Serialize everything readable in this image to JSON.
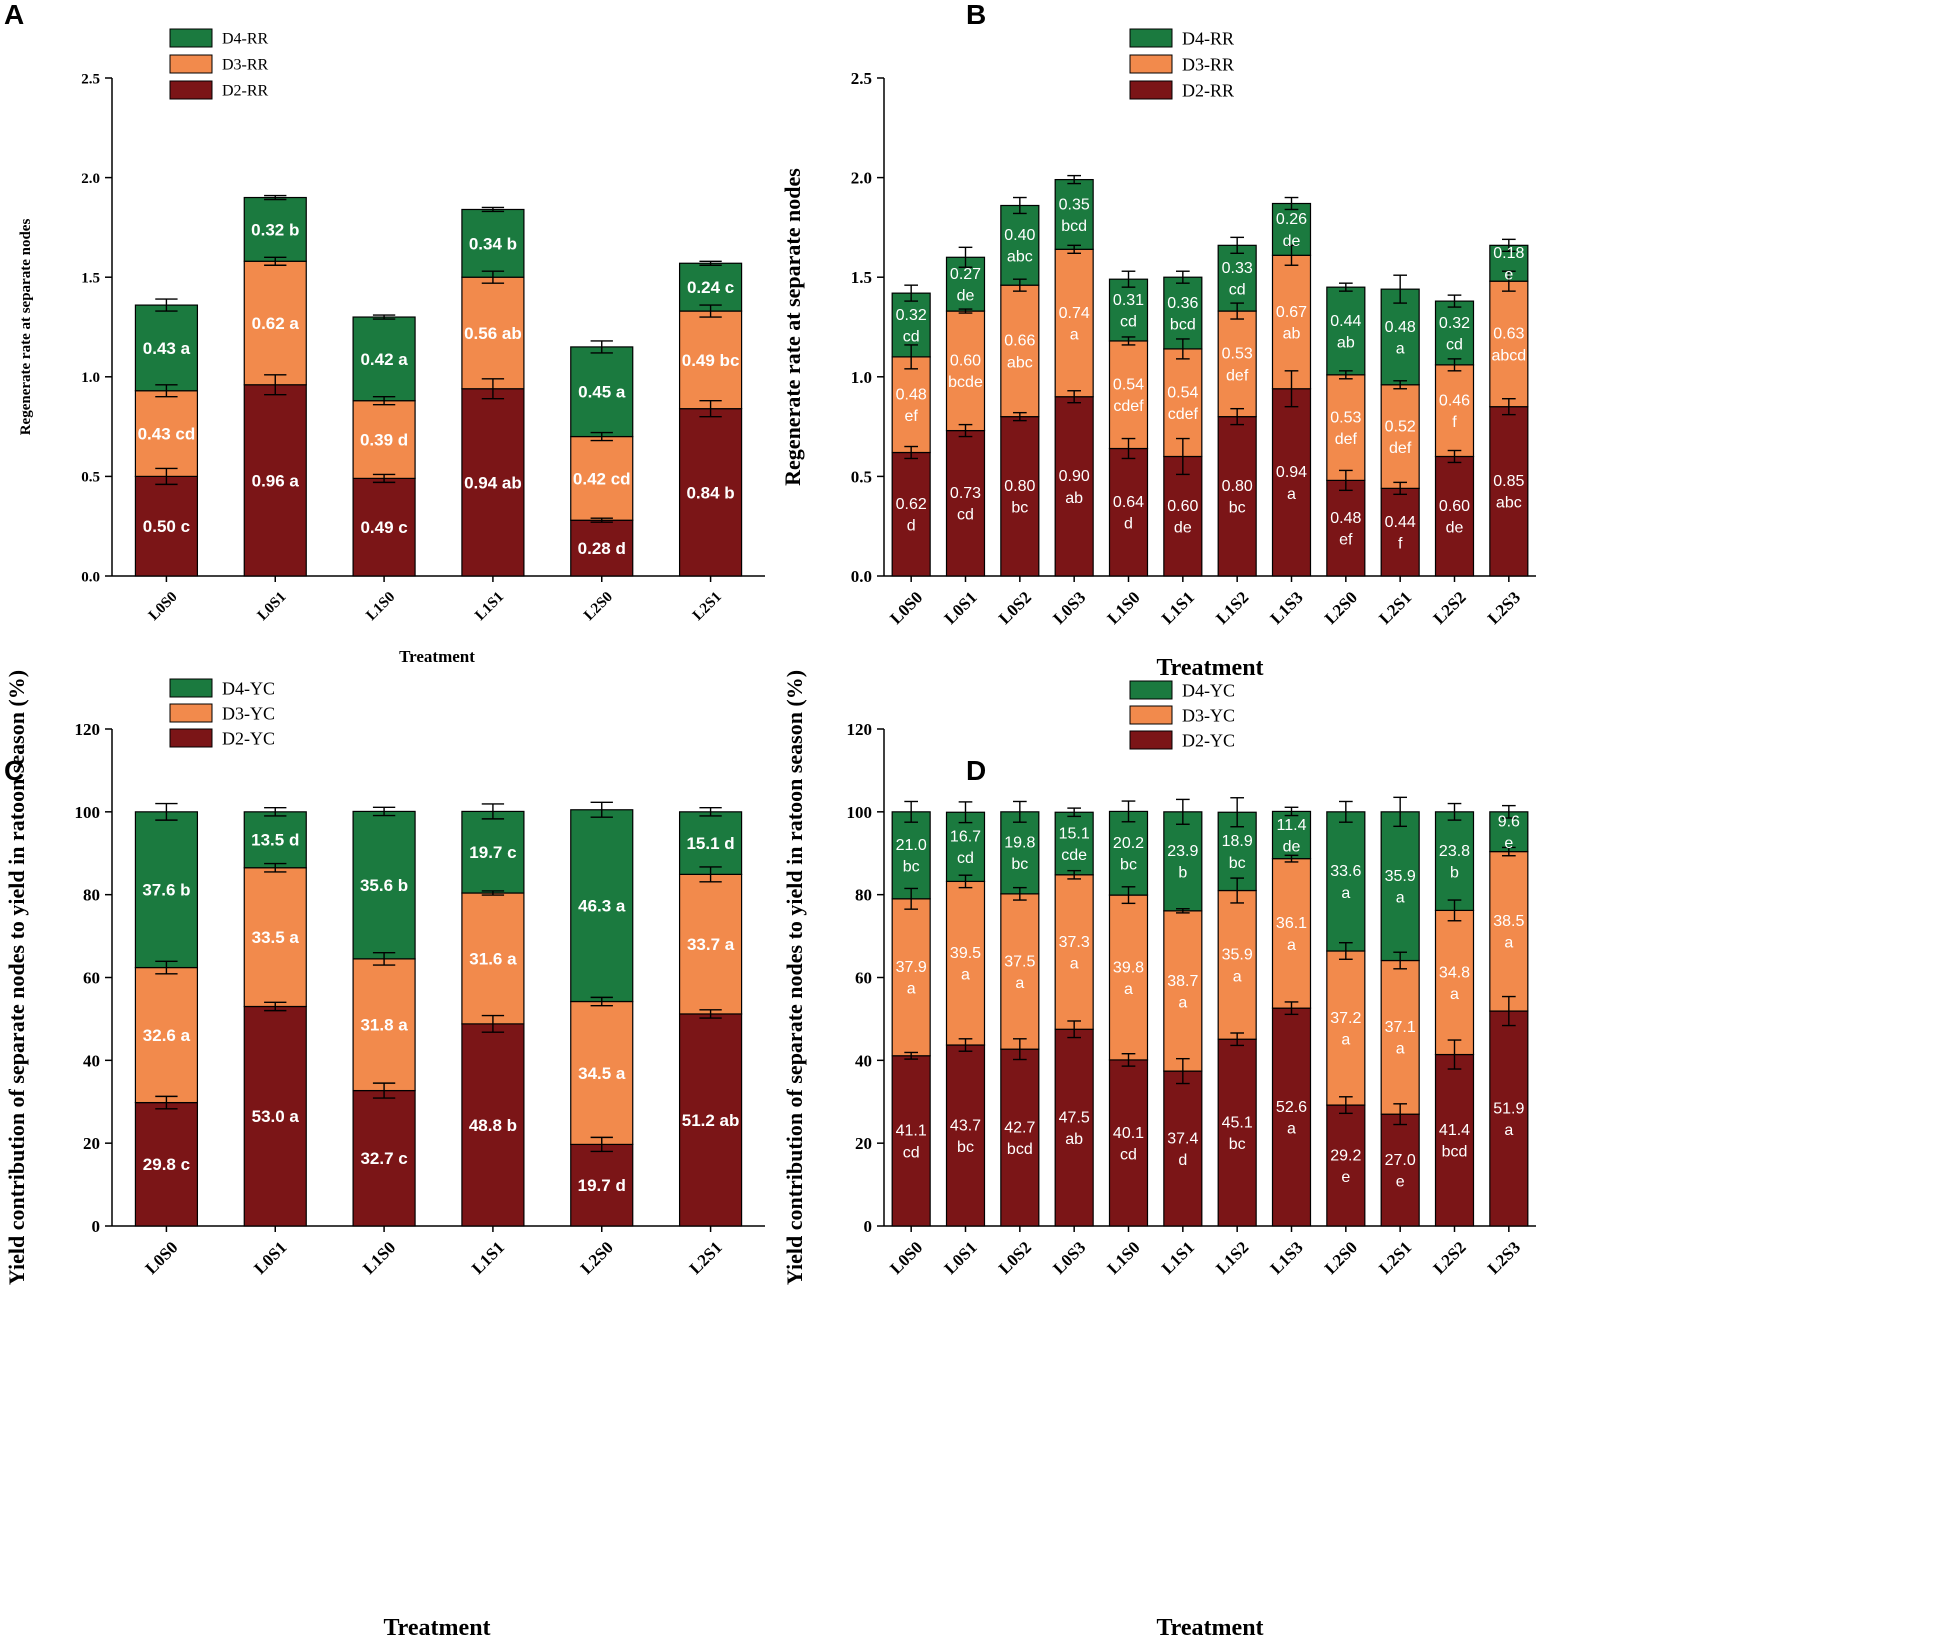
{
  "colors": {
    "D2": "#7b1517",
    "D3": "#f28a4c",
    "D4": "#1b7a3f"
  },
  "chart_data": [
    {
      "panel": "A",
      "type": "bar",
      "stacked": true,
      "ylabel": "Regenerate rate at separate nodes",
      "xlabel": "Treatment",
      "ylim": [
        0,
        2.5
      ],
      "yticks": [
        "0.0",
        "0.5",
        "1.0",
        "1.5",
        "2.0",
        "2.5"
      ],
      "legend": [
        "D4-RR",
        "D3-RR",
        "D2-RR"
      ],
      "categories": [
        "L0S0",
        "L0S1",
        "L1S0",
        "L1S1",
        "L2S0",
        "L2S1"
      ],
      "series": [
        {
          "name": "D2-RR",
          "values": [
            0.5,
            0.96,
            0.49,
            0.94,
            0.28,
            0.84
          ],
          "errors": [
            0.04,
            0.05,
            0.02,
            0.05,
            0.01,
            0.04
          ],
          "labels": [
            "0.50 c",
            "0.96 a",
            "0.49 c",
            "0.94 ab",
            "0.28 d",
            "0.84 b"
          ]
        },
        {
          "name": "D3-RR",
          "values": [
            0.43,
            0.62,
            0.39,
            0.56,
            0.42,
            0.49
          ],
          "errors": [
            0.03,
            0.02,
            0.02,
            0.03,
            0.02,
            0.03
          ],
          "labels": [
            "0.43 cd",
            "0.62 a",
            "0.39 d",
            "0.56 ab",
            "0.42 cd",
            "0.49 bc"
          ]
        },
        {
          "name": "D4-RR",
          "values": [
            0.43,
            0.32,
            0.42,
            0.34,
            0.45,
            0.24
          ],
          "errors": [
            0.03,
            0.01,
            0.01,
            0.01,
            0.03,
            0.01
          ],
          "labels": [
            "0.43 a",
            "0.32 b",
            "0.42 a",
            "0.34 b",
            "0.45 a",
            "0.24 c"
          ]
        }
      ]
    },
    {
      "panel": "B",
      "type": "bar",
      "stacked": true,
      "ylabel": "Regenerate rate at separate nodes",
      "xlabel": "Treatment",
      "ylim": [
        0,
        2.5
      ],
      "yticks": [
        "0.0",
        "0.5",
        "1.0",
        "1.5",
        "2.0",
        "2.5"
      ],
      "legend": [
        "D4-RR",
        "D3-RR",
        "D2-RR"
      ],
      "categories": [
        "L0S0",
        "L0S1",
        "L0S2",
        "L0S3",
        "L1S0",
        "L1S1",
        "L1S2",
        "L1S3",
        "L2S0",
        "L2S1",
        "L2S2",
        "L2S3"
      ],
      "series": [
        {
          "name": "D2-RR",
          "values": [
            0.62,
            0.73,
            0.8,
            0.9,
            0.64,
            0.6,
            0.8,
            0.94,
            0.48,
            0.44,
            0.6,
            0.85
          ],
          "errors": [
            0.03,
            0.03,
            0.02,
            0.03,
            0.05,
            0.09,
            0.04,
            0.09,
            0.05,
            0.03,
            0.03,
            0.04
          ],
          "labels": [
            "0.62\nd",
            "0.73\ncd",
            "0.80\nbc",
            "0.90\nab",
            "0.64\nd",
            "0.60\nde",
            "0.80\nbc",
            "0.94\na",
            "0.48\nef",
            "0.44\nf",
            "0.60\nde",
            "0.85\nabc"
          ]
        },
        {
          "name": "D3-RR",
          "values": [
            0.48,
            0.6,
            0.66,
            0.74,
            0.54,
            0.54,
            0.53,
            0.67,
            0.53,
            0.52,
            0.46,
            0.63
          ],
          "errors": [
            0.06,
            0.01,
            0.03,
            0.02,
            0.02,
            0.05,
            0.04,
            0.05,
            0.02,
            0.02,
            0.03,
            0.05
          ],
          "labels": [
            "0.48\nef",
            "0.60\nbcde",
            "0.66\nabc",
            "0.74\na",
            "0.54\ncdef",
            "0.54\ncdef",
            "0.53\ndef",
            "0.67\nab",
            "0.53\ndef",
            "0.52\ndef",
            "0.46\nf",
            "0.63\nabcd"
          ]
        },
        {
          "name": "D4-RR",
          "values": [
            0.32,
            0.27,
            0.4,
            0.35,
            0.31,
            0.36,
            0.33,
            0.26,
            0.44,
            0.48,
            0.32,
            0.18
          ],
          "errors": [
            0.04,
            0.05,
            0.04,
            0.02,
            0.04,
            0.03,
            0.04,
            0.03,
            0.02,
            0.07,
            0.03,
            0.03
          ],
          "labels": [
            "0.32\ncd",
            "0.27\nde",
            "0.40\nabc",
            "0.35\nbcd",
            "0.31\ncd",
            "0.36\nbcd",
            "0.33\ncd",
            "0.26\nde",
            "0.44\nab",
            "0.48\na",
            "0.32\ncd",
            "0.18\ne"
          ]
        }
      ]
    },
    {
      "panel": "C",
      "type": "bar",
      "stacked": true,
      "ylabel": "Yield contribution of separate nodes to yield in ratoon season (%)",
      "xlabel": "Treatment",
      "ylim": [
        0,
        120
      ],
      "yticks": [
        "0",
        "20",
        "40",
        "60",
        "80",
        "100",
        "120"
      ],
      "legend": [
        "D4-YC",
        "D3-YC",
        "D2-YC"
      ],
      "categories": [
        "L0S0",
        "L0S1",
        "L1S0",
        "L1S1",
        "L2S0",
        "L2S1"
      ],
      "series": [
        {
          "name": "D2-YC",
          "values": [
            29.8,
            53.0,
            32.7,
            48.8,
            19.7,
            51.2
          ],
          "errors": [
            1.5,
            1.0,
            1.8,
            2.0,
            1.7,
            1.0
          ],
          "labels": [
            "29.8 c",
            "53.0 a",
            "32.7 c",
            "48.8 b",
            "19.7 d",
            "51.2 ab"
          ]
        },
        {
          "name": "D3-YC",
          "values": [
            32.6,
            33.5,
            31.8,
            31.6,
            34.5,
            33.7
          ],
          "errors": [
            1.5,
            1.0,
            1.5,
            0.5,
            1.0,
            1.8
          ],
          "labels": [
            "32.6 a",
            "33.5 a",
            "31.8 a",
            "31.6 a",
            "34.5 a",
            "33.7 a"
          ]
        },
        {
          "name": "D4-YC",
          "values": [
            37.6,
            13.5,
            35.6,
            19.7,
            46.3,
            15.1
          ],
          "errors": [
            2.0,
            1.0,
            1.0,
            1.8,
            1.8,
            1.0
          ],
          "labels": [
            "37.6 b",
            "13.5 d",
            "35.6 b",
            "19.7 c",
            "46.3 a",
            "15.1 d"
          ]
        }
      ]
    },
    {
      "panel": "D",
      "type": "bar",
      "stacked": true,
      "ylabel": "Yield contribution of separate nodes to yield in ratoon season (%)",
      "xlabel": "Treatment",
      "ylim": [
        0,
        120
      ],
      "yticks": [
        "0",
        "20",
        "40",
        "60",
        "80",
        "100",
        "120"
      ],
      "legend": [
        "D4-YC",
        "D3-YC",
        "D2-YC"
      ],
      "categories": [
        "L0S0",
        "L0S1",
        "L0S2",
        "L0S3",
        "L1S0",
        "L1S1",
        "L1S2",
        "L1S3",
        "L2S0",
        "L2S1",
        "L2S2",
        "L2S3"
      ],
      "series": [
        {
          "name": "D2-YC",
          "values": [
            41.1,
            43.7,
            42.7,
            47.5,
            40.1,
            37.4,
            45.1,
            52.6,
            29.2,
            27.0,
            41.4,
            51.9
          ],
          "errors": [
            0.8,
            1.5,
            2.5,
            2.0,
            1.5,
            3.0,
            1.5,
            1.5,
            2.0,
            2.5,
            3.5,
            3.5
          ],
          "labels": [
            "41.1\ncd",
            "43.7\nbc",
            "42.7\nbcd",
            "47.5\nab",
            "40.1\ncd",
            "37.4\nd",
            "45.1\nbc",
            "52.6\na",
            "29.2\ne",
            "27.0\ne",
            "41.4\nbcd",
            "51.9\na"
          ]
        },
        {
          "name": "D3-YC",
          "values": [
            37.9,
            39.5,
            37.5,
            37.3,
            39.8,
            38.7,
            35.9,
            36.1,
            37.2,
            37.1,
            34.8,
            38.5
          ],
          "errors": [
            2.5,
            1.5,
            1.5,
            1.0,
            2.0,
            0.5,
            3.0,
            0.8,
            2.0,
            2.0,
            2.5,
            1.0
          ],
          "labels": [
            "37.9\na",
            "39.5\na",
            "37.5\na",
            "37.3\na",
            "39.8\na",
            "38.7\na",
            "35.9\na",
            "36.1\na",
            "37.2\na",
            "37.1\na",
            "34.8\na",
            "38.5\na"
          ]
        },
        {
          "name": "D4-YC",
          "values": [
            21.0,
            16.7,
            19.8,
            15.1,
            20.2,
            23.9,
            18.9,
            11.4,
            33.6,
            35.9,
            23.8,
            9.6
          ],
          "errors": [
            2.5,
            2.5,
            2.5,
            1.0,
            2.5,
            3.0,
            3.5,
            1.0,
            2.5,
            3.5,
            2.0,
            1.5
          ],
          "labels": [
            "21.0\nbc",
            "16.7\ncd",
            "19.8\nbc",
            "15.1\ncde",
            "20.2\nbc",
            "23.9\nb",
            "18.9\nbc",
            "11.4\nde",
            "33.6\na",
            "35.9\na",
            "23.8\nb",
            "9.6\ne"
          ]
        }
      ]
    }
  ]
}
